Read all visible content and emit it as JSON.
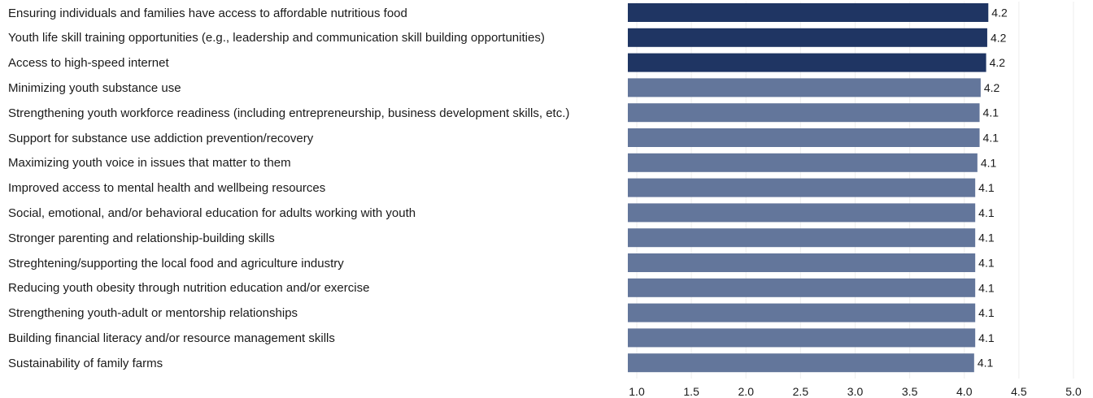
{
  "chart_data": {
    "type": "bar",
    "orientation": "horizontal",
    "title": "",
    "xlabel": "",
    "ylabel": "",
    "xlim": [
      1.0,
      5.0
    ],
    "grid": true,
    "legend": "none",
    "ticks": [
      "1.0",
      "1.5",
      "2.0",
      "2.5",
      "3.0",
      "3.5",
      "4.0",
      "4.5",
      "5.0"
    ],
    "tick_values": [
      1.0,
      1.5,
      2.0,
      2.5,
      3.0,
      3.5,
      4.0,
      4.5,
      5.0
    ],
    "colors": {
      "highlight": "#1f3563",
      "default": "#63769b"
    },
    "bars": [
      {
        "category": "Ensuring individuals and families have access to affordable nutritious food",
        "value": 4.22,
        "label": "4.2",
        "highlight": true
      },
      {
        "category": "Youth life skill training opportunities (e.g., leadership and communication skill building opportunities)",
        "value": 4.21,
        "label": "4.2",
        "highlight": true
      },
      {
        "category": "Access to high-speed internet",
        "value": 4.2,
        "label": "4.2",
        "highlight": true
      },
      {
        "category": "Minimizing youth substance use",
        "value": 4.15,
        "label": "4.2",
        "highlight": false
      },
      {
        "category": "Strengthening youth workforce readiness (including entrepreneurship, business development skills, etc.)",
        "value": 4.14,
        "label": "4.1",
        "highlight": false
      },
      {
        "category": "Support for substance use addiction prevention/recovery",
        "value": 4.14,
        "label": "4.1",
        "highlight": false
      },
      {
        "category": "Maximizing youth voice in issues that matter to them",
        "value": 4.12,
        "label": "4.1",
        "highlight": false
      },
      {
        "category": "Improved access to mental health and wellbeing resources",
        "value": 4.1,
        "label": "4.1",
        "highlight": false
      },
      {
        "category": "Social, emotional, and/or behavioral education for adults working with youth",
        "value": 4.1,
        "label": "4.1",
        "highlight": false
      },
      {
        "category": "Stronger parenting and relationship-building skills",
        "value": 4.1,
        "label": "4.1",
        "highlight": false
      },
      {
        "category": "Streghtening/supporting the local food and agriculture industry",
        "value": 4.1,
        "label": "4.1",
        "highlight": false
      },
      {
        "category": "Reducing youth obesity through nutrition education and/or exercise",
        "value": 4.1,
        "label": "4.1",
        "highlight": false
      },
      {
        "category": "Strengthening youth-adult or mentorship relationships",
        "value": 4.1,
        "label": "4.1",
        "highlight": false
      },
      {
        "category": "Building financial literacy and/or resource management skills",
        "value": 4.1,
        "label": "4.1",
        "highlight": false
      },
      {
        "category": "Sustainability of family farms",
        "value": 4.09,
        "label": "4.1",
        "highlight": false
      }
    ]
  }
}
